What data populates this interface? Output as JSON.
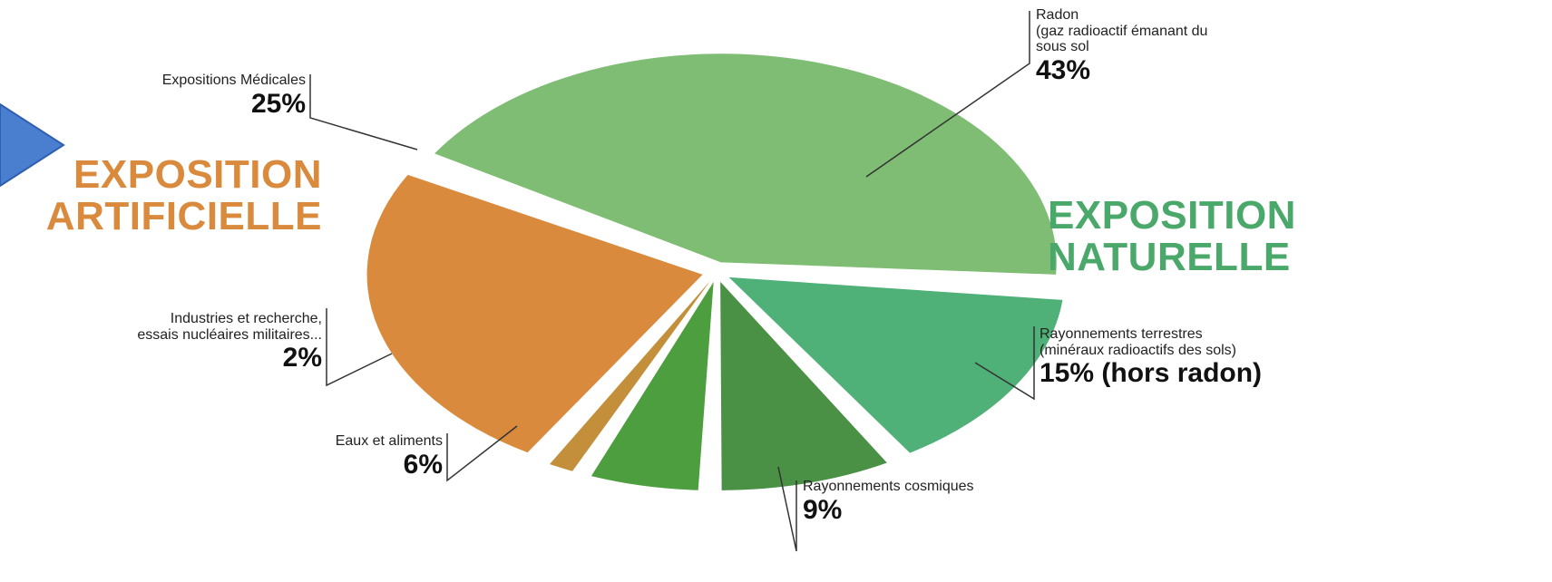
{
  "chart_data": {
    "type": "pie",
    "title": "",
    "groups": [
      {
        "name": "EXPOSITION ARTIFICIELLE",
        "color": "#d98a3c"
      },
      {
        "name": "EXPOSITION NATURELLE",
        "color": "#4aa86a"
      }
    ],
    "slices": [
      {
        "label": "Radon",
        "detail": "(gaz radioactif émanant du sous sol",
        "value": 43,
        "value_text": "43%",
        "group": "EXPOSITION NATURELLE",
        "color": "#7fbd74"
      },
      {
        "label": "Rayonnements terrestres",
        "detail": "(minéraux radioactifs des sols)",
        "value": 15,
        "value_text": "15% (hors radon)",
        "group": "EXPOSITION NATURELLE",
        "color": "#4fb078"
      },
      {
        "label": "Rayonnements cosmiques",
        "detail": "",
        "value": 9,
        "value_text": "9%",
        "group": "EXPOSITION NATURELLE",
        "color": "#4a9045"
      },
      {
        "label": "Eaux et aliments",
        "detail": "",
        "value": 6,
        "value_text": "6%",
        "group": "EXPOSITION NATURELLE",
        "color": "#4d9e3e"
      },
      {
        "label": "Industries et recherche,",
        "detail": "essais nucléaires militaires...",
        "value": 2,
        "value_text": "2%",
        "group": "EXPOSITION ARTIFICIELLE",
        "color": "#c48f3a"
      },
      {
        "label": "Expositions Médicales",
        "detail": "",
        "value": 25,
        "value_text": "25%",
        "group": "EXPOSITION ARTIFICIELLE",
        "color": "#d98a3c"
      }
    ]
  },
  "decoration": {
    "arrow_color": "#4a7fd0"
  }
}
